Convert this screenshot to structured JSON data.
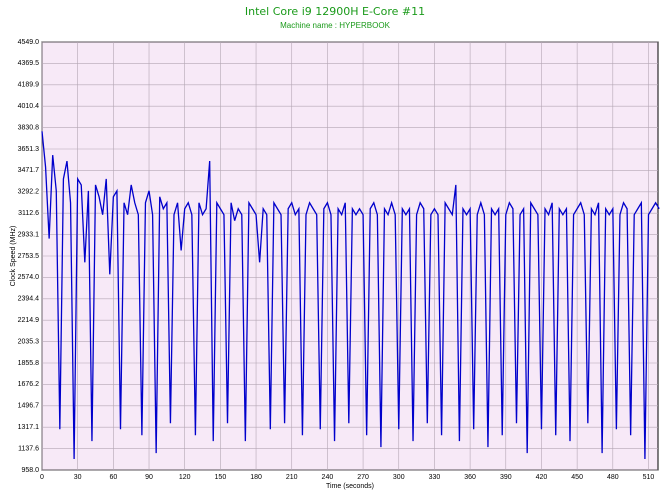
{
  "chart_data": {
    "type": "line",
    "title": "Intel Core i9 12900H E-Core #11",
    "subtitle": "Machine name : HYPERBOOK",
    "xlabel": "Time (seconds)",
    "ylabel": "Clock Speed (MHz)",
    "xlim": [
      0,
      518
    ],
    "ylim": [
      958,
      4549
    ],
    "xticks": [
      0,
      30,
      60,
      90,
      120,
      150,
      180,
      210,
      240,
      270,
      300,
      330,
      360,
      390,
      420,
      450,
      480,
      510
    ],
    "yticks": [
      {
        "value": 958,
        "label": "958.0"
      },
      1137.6,
      1317.1,
      1496.7,
      1676.2,
      1855.8,
      2035.3,
      2214.9,
      2394.4,
      {
        "value": 2574,
        "label": "2574.0"
      },
      2753.5,
      2933.1,
      3112.6,
      3292.2,
      3471.7,
      3651.3,
      3830.8,
      4010.4,
      4189.9,
      4369.5,
      {
        "value": 4549,
        "label": "4549.0"
      }
    ],
    "grid": true,
    "x": [
      0,
      3,
      6,
      9,
      12,
      15,
      18,
      21,
      24,
      27,
      30,
      33,
      36,
      39,
      42,
      45,
      48,
      51,
      54,
      57,
      60,
      63,
      66,
      69,
      72,
      75,
      78,
      81,
      84,
      87,
      90,
      93,
      96,
      99,
      102,
      105,
      108,
      111,
      114,
      117,
      120,
      123,
      126,
      129,
      132,
      135,
      138,
      141,
      144,
      147,
      150,
      153,
      156,
      159,
      162,
      165,
      168,
      171,
      174,
      177,
      180,
      183,
      186,
      189,
      192,
      195,
      198,
      201,
      204,
      207,
      210,
      213,
      216,
      219,
      222,
      225,
      228,
      231,
      234,
      237,
      240,
      243,
      246,
      249,
      252,
      255,
      258,
      261,
      264,
      267,
      270,
      273,
      276,
      279,
      282,
      285,
      288,
      291,
      294,
      297,
      300,
      303,
      306,
      309,
      312,
      315,
      318,
      321,
      324,
      327,
      330,
      333,
      336,
      339,
      342,
      345,
      348,
      351,
      354,
      357,
      360,
      363,
      366,
      369,
      372,
      375,
      378,
      381,
      384,
      387,
      390,
      393,
      396,
      399,
      402,
      405,
      408,
      411,
      414,
      417,
      420,
      423,
      426,
      429,
      432,
      435,
      438,
      441,
      444,
      447,
      450,
      453,
      456,
      459,
      462,
      465,
      468,
      471,
      474,
      477,
      480,
      483,
      486,
      489,
      492,
      495,
      498,
      501,
      504,
      507,
      510,
      513,
      516,
      519
    ],
    "series": [
      {
        "name": "E-Core #11",
        "color": "#0000cc",
        "values": [
          3800,
          3500,
          2900,
          3600,
          3300,
          1300,
          3400,
          3550,
          3200,
          1050,
          3400,
          3350,
          2700,
          3300,
          1200,
          3350,
          3250,
          3100,
          3400,
          2600,
          3250,
          3300,
          1300,
          3200,
          3100,
          3350,
          3200,
          3100,
          1250,
          3200,
          3300,
          3100,
          1100,
          3250,
          3150,
          3200,
          1350,
          3100,
          3200,
          2800,
          3150,
          3200,
          3100,
          1250,
          3200,
          3100,
          3150,
          3550,
          1200,
          3200,
          3150,
          3100,
          1350,
          3200,
          3050,
          3150,
          3100,
          1200,
          3200,
          3150,
          3100,
          2700,
          3150,
          3100,
          1300,
          3200,
          3150,
          3100,
          1350,
          3150,
          3200,
          3100,
          3150,
          1250,
          3100,
          3200,
          3150,
          3100,
          1300,
          3150,
          3200,
          3100,
          1200,
          3150,
          3100,
          3200,
          1350,
          3150,
          3100,
          3150,
          3100,
          1250,
          3150,
          3200,
          3100,
          1150,
          3150,
          3100,
          3200,
          3100,
          1300,
          3150,
          3100,
          3150,
          1200,
          3100,
          3200,
          3150,
          1350,
          3100,
          3150,
          3100,
          1250,
          3200,
          3150,
          3100,
          3350,
          1200,
          3150,
          3100,
          3150,
          1300,
          3100,
          3200,
          3100,
          1150,
          3150,
          3100,
          3150,
          1250,
          3100,
          3200,
          3150,
          1350,
          3100,
          3150,
          1100,
          3200,
          3150,
          3100,
          1300,
          3150,
          3100,
          3200,
          1250,
          3150,
          3100,
          3150,
          1200,
          3100,
          3150,
          3200,
          3100,
          1350,
          3150,
          3100,
          3200,
          1100,
          3150,
          3100,
          3150,
          1300,
          3100,
          3200,
          3150,
          1250,
          3100,
          3150,
          3200,
          1050,
          3100,
          3150,
          3200,
          3150
        ]
      }
    ]
  }
}
